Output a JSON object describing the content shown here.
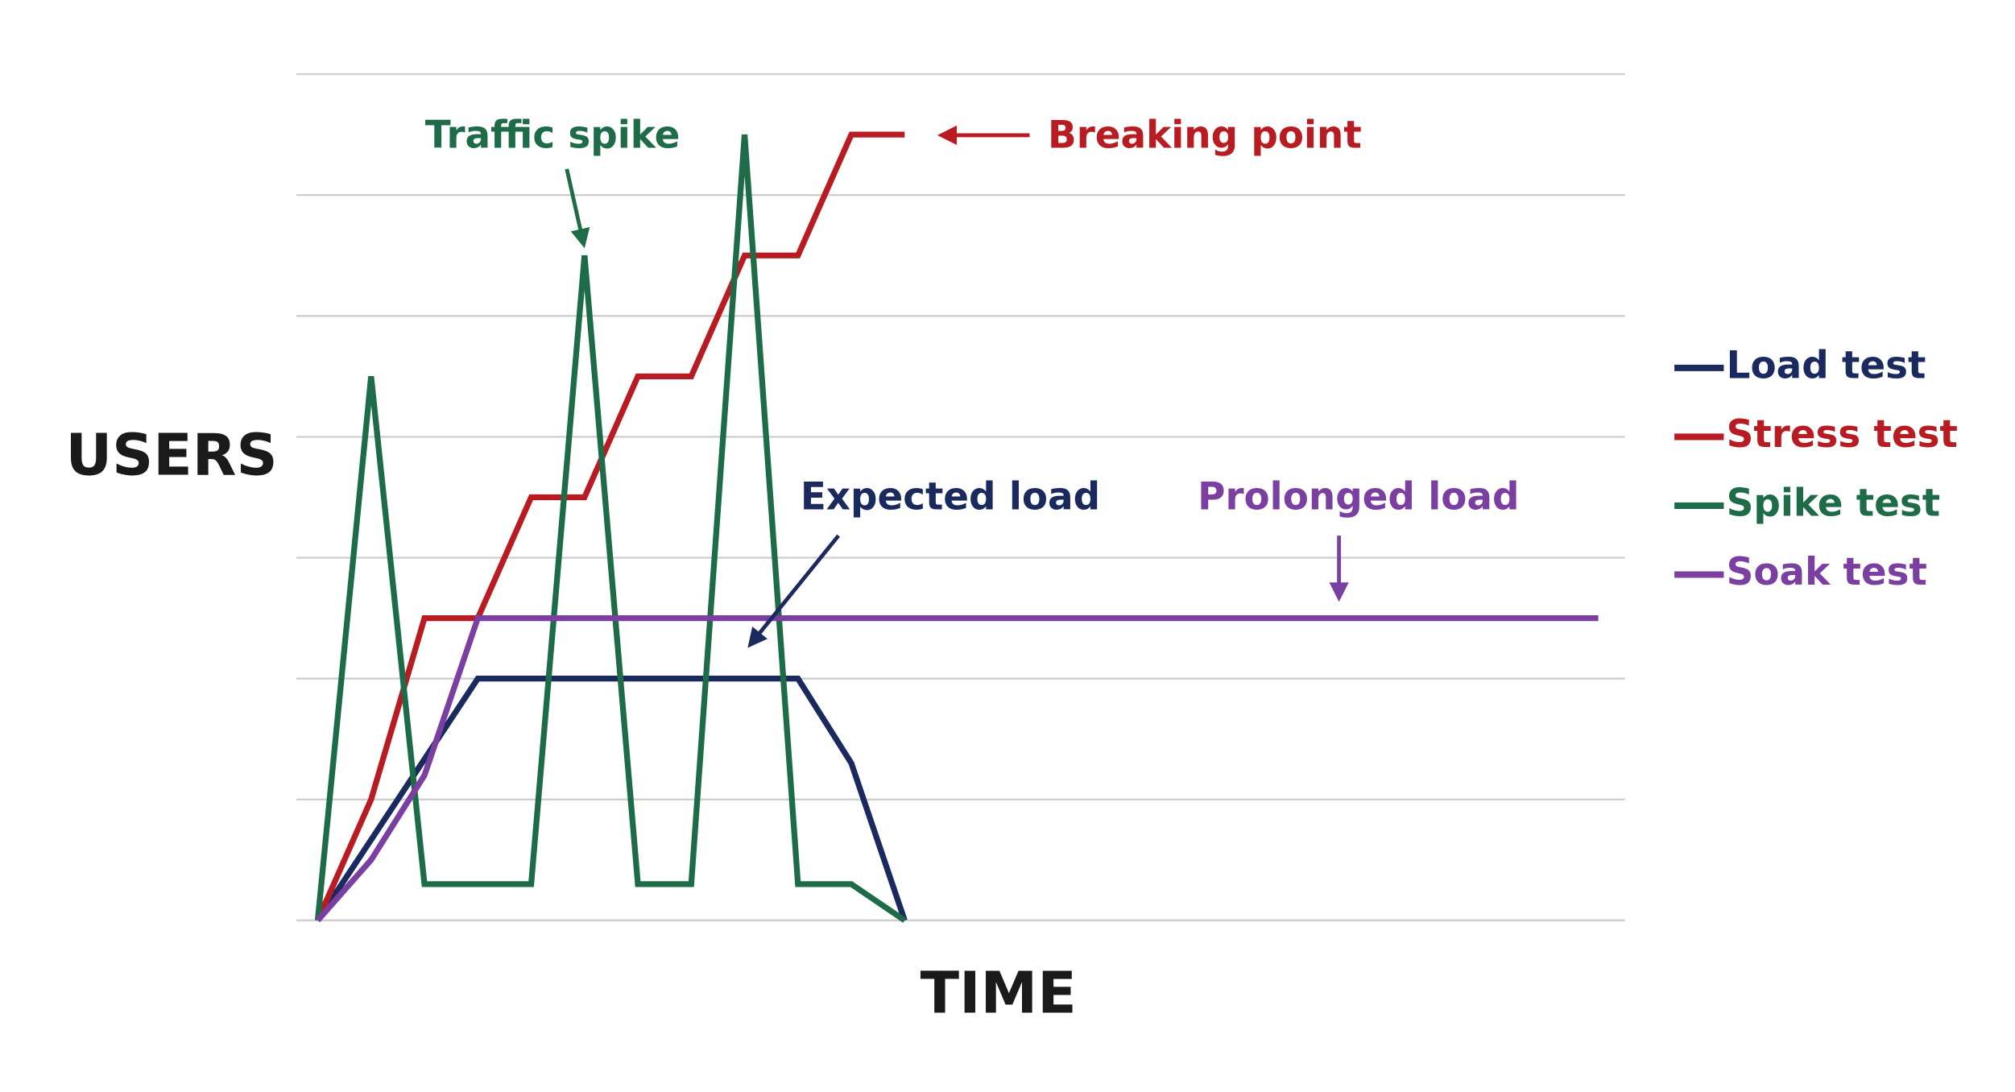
{
  "chart_data": {
    "type": "line",
    "ylabel": "USERS",
    "xlabel": "TIME",
    "xlim": [
      -0.4,
      24.5
    ],
    "ylim": [
      0,
      7
    ],
    "yticks": [
      0,
      1,
      2,
      3,
      4,
      5,
      6,
      7
    ],
    "grid": true,
    "tick_labels": false,
    "legend": "right",
    "series": [
      {
        "name": "Load test",
        "color": "#1b2a5e",
        "x": [
          0,
          3,
          9,
          10,
          11
        ],
        "values": [
          0,
          2,
          2,
          1.3,
          0
        ]
      },
      {
        "name": "Stress test",
        "color": "#b81c22",
        "x": [
          0,
          1,
          2,
          3,
          4,
          5,
          6,
          7,
          8,
          9,
          10,
          11
        ],
        "values": [
          0,
          1,
          2.5,
          2.5,
          3.5,
          3.5,
          4.5,
          4.5,
          5.5,
          5.5,
          6.5,
          6.5
        ]
      },
      {
        "name": "Spike test",
        "color": "#1e6b48",
        "x": [
          0,
          1,
          2,
          4,
          5,
          6,
          7,
          8,
          9,
          10,
          11
        ],
        "values": [
          0,
          4.5,
          0.3,
          0.3,
          5.5,
          0.3,
          0.3,
          6.5,
          0.3,
          0.3,
          0
        ]
      },
      {
        "name": "Soak test",
        "color": "#7a3fa0",
        "x": [
          0,
          1,
          2,
          3,
          24
        ],
        "values": [
          0,
          0.5,
          1.2,
          2.5,
          2.5
        ]
      }
    ],
    "annotations": [
      {
        "text": "Traffic spike",
        "color": "#1e6b48"
      },
      {
        "text": "Breaking point",
        "color": "#b81c22"
      },
      {
        "text": "Expected load",
        "color": "#1b2a5e"
      },
      {
        "text": "Prolonged load",
        "color": "#7a3fa0"
      }
    ]
  }
}
